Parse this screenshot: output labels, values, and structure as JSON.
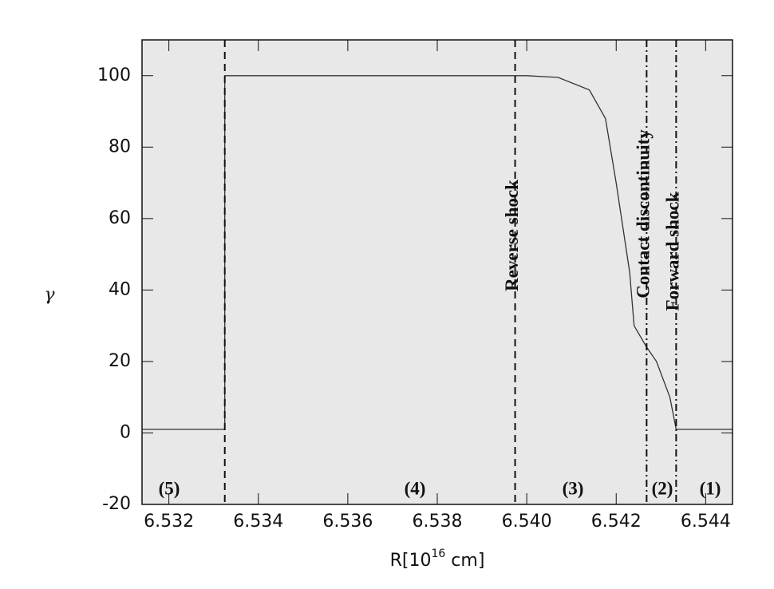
{
  "chart_data": {
    "type": "line",
    "x_label": [
      "R[10",
      "16",
      " cm]"
    ],
    "y_label": "γ",
    "xlim": [
      6.5314,
      6.5446
    ],
    "ylim": [
      -20,
      110
    ],
    "xticks": [
      6.532,
      6.534,
      6.536,
      6.538,
      {
        "value": 6.54,
        "label": "6.540"
      },
      6.542,
      6.544
    ],
    "yticks": [
      -20,
      0,
      20,
      40,
      60,
      80,
      100
    ],
    "x": [
      6.5314,
      6.53325,
      6.53325,
      6.54,
      6.5407,
      6.5414,
      6.54176,
      6.542,
      6.5423,
      6.5424,
      6.54268,
      6.5429,
      6.5432,
      6.54334,
      6.5446
    ],
    "series": [
      {
        "color": "#333333",
        "values": [
          1,
          1,
          100,
          100,
          99.5,
          96,
          88,
          70,
          45,
          30,
          24,
          20,
          10,
          1,
          1
        ]
      }
    ],
    "vlines": [
      {
        "x": 6.53325,
        "style": "dashed"
      },
      {
        "x": 6.53974,
        "style": "dashed",
        "label": "Reverse shock"
      },
      {
        "x": 6.54268,
        "style": "dashdot",
        "label": "Contact discontinuity"
      },
      {
        "x": 6.54334,
        "style": "dashdot",
        "label": "Forward shock"
      }
    ],
    "regions": [
      "(5)",
      "(4)",
      "(3)",
      "(2)",
      "(1)"
    ],
    "background": "#e8e8e8"
  }
}
